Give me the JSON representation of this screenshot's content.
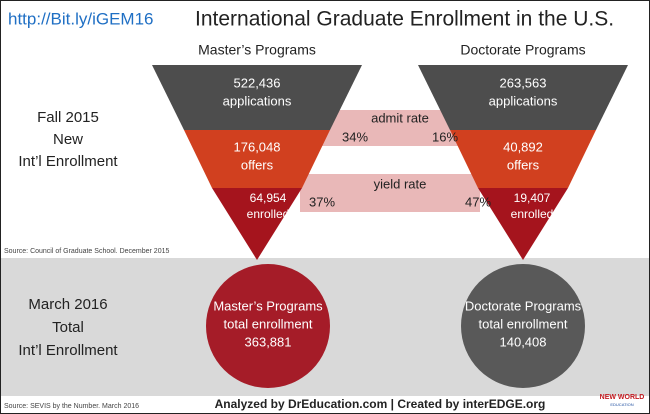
{
  "header": {
    "url": "http://Bit.ly/iGEM16",
    "title": "International Graduate Enrollment in the U.S."
  },
  "fall_section": {
    "label": [
      "Fall 2015",
      "New",
      "Int’l Enrollment"
    ]
  },
  "funnels": [
    {
      "title": "Master’s Programs",
      "applications": "522,436",
      "applications_label": "applications",
      "offers": "176,048",
      "offers_label": "offers",
      "enrolled": "64,954",
      "enrolled_label": "enrolled"
    },
    {
      "title": "Doctorate Programs",
      "applications": "263,563",
      "applications_label": "applications",
      "offers": "40,892",
      "offers_label": "offers",
      "enrolled": "19,407",
      "enrolled_label": "enrolled"
    }
  ],
  "rates": {
    "admit_rate": {
      "label": "admit rate",
      "masters": "34%",
      "doctorate": "16%"
    },
    "yield_rate": {
      "label": "yield rate",
      "masters": "37%",
      "doctorate": "47%"
    }
  },
  "source_fall": "Source: Council of Graduate School. December 2015",
  "march_section": {
    "label": [
      "March 2016",
      "Total",
      "Int’l Enrollment"
    ]
  },
  "totals": [
    {
      "title": "Master’s Programs",
      "subtitle": "total enrollment",
      "value": "363,881"
    },
    {
      "title": "Doctorate Programs",
      "subtitle": "total enrollment",
      "value": "140,408"
    }
  ],
  "source_march": "Source: SEVIS by the Number. March 2016",
  "footer": "Analyzed by DrEducation.com | Created by interEDGE.org",
  "logo": {
    "line1": "NEW WORLD",
    "line2": "EDUCATION"
  }
}
